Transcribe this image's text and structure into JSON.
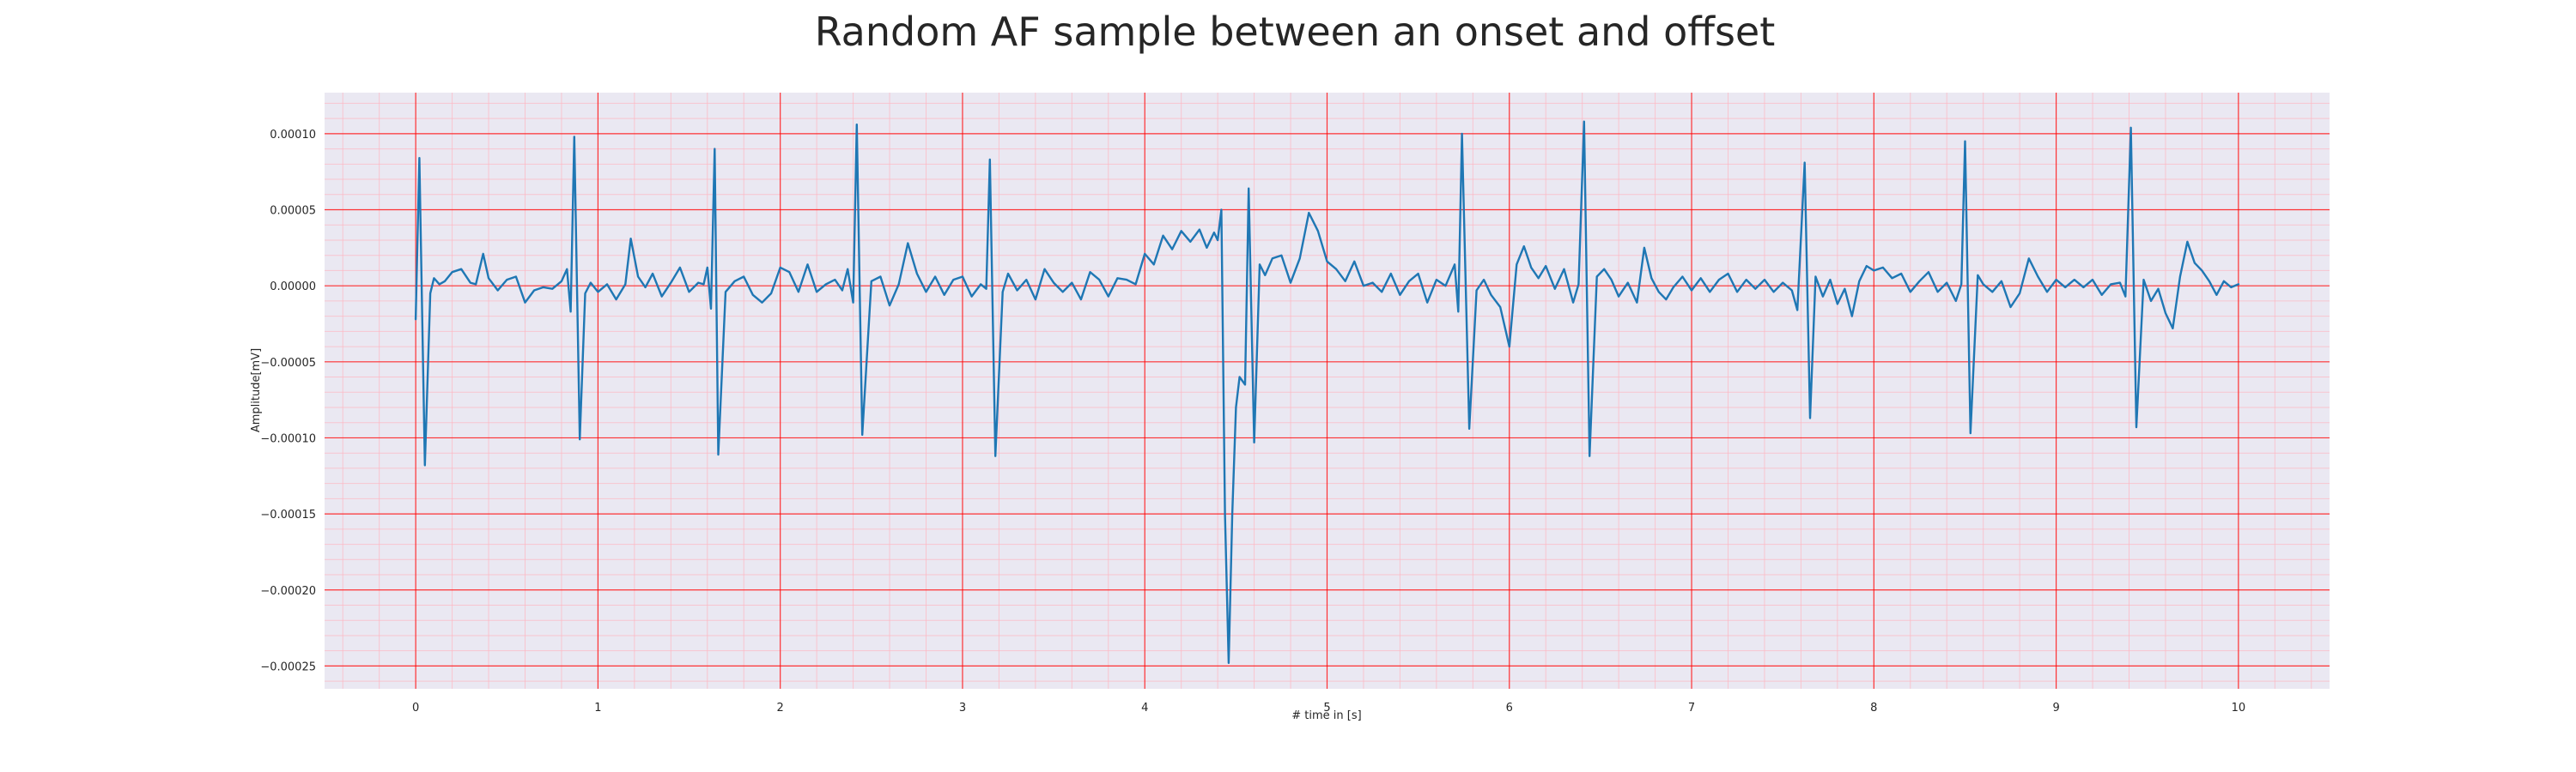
{
  "chart_data": {
    "type": "line",
    "title": "Random AF sample between an onset and offset",
    "xlabel": "# time in [s]",
    "ylabel": "Amplitude[mV]",
    "xlim": [
      -0.5,
      10.5
    ],
    "ylim": [
      -0.000265,
      0.000127
    ],
    "xticks": [
      0,
      1,
      2,
      3,
      4,
      5,
      6,
      7,
      8,
      9,
      10
    ],
    "xtick_labels": [
      "0",
      "1",
      "2",
      "3",
      "4",
      "5",
      "6",
      "7",
      "8",
      "9",
      "10"
    ],
    "yticks": [
      0.0001,
      5e-05,
      0,
      -5e-05,
      -0.0001,
      -0.00015,
      -0.0002,
      -0.00025
    ],
    "ytick_labels": [
      "0.00010",
      "0.00005",
      "0.00000",
      "−0.00005",
      "−0.00010",
      "−0.00015",
      "−0.00020",
      "−0.00025"
    ],
    "grid": true,
    "colors": {
      "line": "#1f77b4",
      "plot_background": "#eae8f2",
      "major_grid": "#ff0000",
      "minor_grid": "#ffb6c1"
    },
    "series": [
      {
        "values": [
          [
            0,
            -2.2e-05
          ],
          [
            0.02,
            8.4e-05
          ],
          [
            0.05,
            -0.000118
          ],
          [
            0.08,
            -5e-06
          ],
          [
            0.1,
            5e-06
          ],
          [
            0.13,
            1e-06
          ],
          [
            0.16,
            3e-06
          ],
          [
            0.2,
            9e-06
          ],
          [
            0.25,
            1.1e-05
          ],
          [
            0.3,
            2e-06
          ],
          [
            0.33,
            1e-06
          ],
          [
            0.37,
            2.1e-05
          ],
          [
            0.4,
            5e-06
          ],
          [
            0.45,
            -3e-06
          ],
          [
            0.5,
            4e-06
          ],
          [
            0.55,
            6e-06
          ],
          [
            0.6,
            -1.1e-05
          ],
          [
            0.65,
            -3e-06
          ],
          [
            0.7,
            -1e-06
          ],
          [
            0.75,
            -2e-06
          ],
          [
            0.8,
            3e-06
          ],
          [
            0.83,
            1.1e-05
          ],
          [
            0.85,
            -1.7e-05
          ],
          [
            0.87,
            9.8e-05
          ],
          [
            0.9,
            -0.000101
          ],
          [
            0.93,
            -5e-06
          ],
          [
            0.96,
            2e-06
          ],
          [
            1.0,
            -4e-06
          ],
          [
            1.05,
            1e-06
          ],
          [
            1.1,
            -9e-06
          ],
          [
            1.15,
            1e-06
          ],
          [
            1.18,
            3.1e-05
          ],
          [
            1.22,
            6e-06
          ],
          [
            1.26,
            -1e-06
          ],
          [
            1.3,
            8e-06
          ],
          [
            1.35,
            -7e-06
          ],
          [
            1.4,
            2e-06
          ],
          [
            1.45,
            1.2e-05
          ],
          [
            1.5,
            -4e-06
          ],
          [
            1.55,
            2e-06
          ],
          [
            1.58,
            1e-06
          ],
          [
            1.6,
            1.2e-05
          ],
          [
            1.62,
            -1.5e-05
          ],
          [
            1.64,
            9e-05
          ],
          [
            1.66,
            -0.000111
          ],
          [
            1.7,
            -4e-06
          ],
          [
            1.75,
            3e-06
          ],
          [
            1.8,
            6e-06
          ],
          [
            1.85,
            -6e-06
          ],
          [
            1.9,
            -1.1e-05
          ],
          [
            1.95,
            -5e-06
          ],
          [
            2.0,
            1.2e-05
          ],
          [
            2.05,
            9e-06
          ],
          [
            2.1,
            -4e-06
          ],
          [
            2.15,
            1.4e-05
          ],
          [
            2.2,
            -4e-06
          ],
          [
            2.25,
            1e-06
          ],
          [
            2.3,
            4e-06
          ],
          [
            2.34,
            -3e-06
          ],
          [
            2.37,
            1.1e-05
          ],
          [
            2.4,
            -1.1e-05
          ],
          [
            2.42,
            0.000106
          ],
          [
            2.45,
            -9.8e-05
          ],
          [
            2.5,
            3e-06
          ],
          [
            2.55,
            6e-06
          ],
          [
            2.6,
            -1.3e-05
          ],
          [
            2.65,
            1e-06
          ],
          [
            2.7,
            2.8e-05
          ],
          [
            2.75,
            8e-06
          ],
          [
            2.8,
            -4e-06
          ],
          [
            2.85,
            6e-06
          ],
          [
            2.9,
            -6e-06
          ],
          [
            2.95,
            4e-06
          ],
          [
            3.0,
            6e-06
          ],
          [
            3.05,
            -7e-06
          ],
          [
            3.1,
            1e-06
          ],
          [
            3.13,
            -2e-06
          ],
          [
            3.15,
            8.3e-05
          ],
          [
            3.18,
            -0.000112
          ],
          [
            3.22,
            -4e-06
          ],
          [
            3.25,
            8e-06
          ],
          [
            3.3,
            -3e-06
          ],
          [
            3.35,
            4e-06
          ],
          [
            3.4,
            -9e-06
          ],
          [
            3.45,
            1.1e-05
          ],
          [
            3.5,
            2e-06
          ],
          [
            3.55,
            -4e-06
          ],
          [
            3.6,
            2e-06
          ],
          [
            3.65,
            -9e-06
          ],
          [
            3.7,
            9e-06
          ],
          [
            3.75,
            4e-06
          ],
          [
            3.8,
            -7e-06
          ],
          [
            3.85,
            5e-06
          ],
          [
            3.9,
            4e-06
          ],
          [
            3.95,
            1e-06
          ],
          [
            4.0,
            2.1e-05
          ],
          [
            4.05,
            1.4e-05
          ],
          [
            4.1,
            3.3e-05
          ],
          [
            4.15,
            2.4e-05
          ],
          [
            4.2,
            3.6e-05
          ],
          [
            4.25,
            2.9e-05
          ],
          [
            4.3,
            3.7e-05
          ],
          [
            4.34,
            2.5e-05
          ],
          [
            4.38,
            3.5e-05
          ],
          [
            4.4,
            3e-05
          ],
          [
            4.42,
            5e-05
          ],
          [
            4.44,
            -0.00015
          ],
          [
            4.46,
            -0.000248
          ],
          [
            4.48,
            -0.00015
          ],
          [
            4.5,
            -8e-05
          ],
          [
            4.52,
            -6e-05
          ],
          [
            4.55,
            -6.5e-05
          ],
          [
            4.57,
            6.4e-05
          ],
          [
            4.6,
            -0.000103
          ],
          [
            4.63,
            1.4e-05
          ],
          [
            4.66,
            7e-06
          ],
          [
            4.7,
            1.8e-05
          ],
          [
            4.75,
            2e-05
          ],
          [
            4.8,
            2e-06
          ],
          [
            4.85,
            1.8e-05
          ],
          [
            4.9,
            4.8e-05
          ],
          [
            4.95,
            3.6e-05
          ],
          [
            5.0,
            1.6e-05
          ],
          [
            5.05,
            1.1e-05
          ],
          [
            5.1,
            3e-06
          ],
          [
            5.15,
            1.6e-05
          ],
          [
            5.2,
            0.0
          ],
          [
            5.25,
            2e-06
          ],
          [
            5.3,
            -4e-06
          ],
          [
            5.35,
            8e-06
          ],
          [
            5.4,
            -6e-06
          ],
          [
            5.45,
            3e-06
          ],
          [
            5.5,
            8e-06
          ],
          [
            5.55,
            -1.1e-05
          ],
          [
            5.6,
            4e-06
          ],
          [
            5.65,
            0.0
          ],
          [
            5.7,
            1.4e-05
          ],
          [
            5.72,
            -1.7e-05
          ],
          [
            5.74,
            0.0001
          ],
          [
            5.78,
            -9.4e-05
          ],
          [
            5.82,
            -3e-06
          ],
          [
            5.86,
            4e-06
          ],
          [
            5.9,
            -6e-06
          ],
          [
            5.95,
            -1.4e-05
          ],
          [
            6.0,
            -4e-05
          ],
          [
            6.04,
            1.4e-05
          ],
          [
            6.08,
            2.6e-05
          ],
          [
            6.12,
            1.2e-05
          ],
          [
            6.16,
            5e-06
          ],
          [
            6.2,
            1.3e-05
          ],
          [
            6.25,
            -2e-06
          ],
          [
            6.3,
            1.1e-05
          ],
          [
            6.35,
            -1.1e-05
          ],
          [
            6.38,
            1e-06
          ],
          [
            6.41,
            0.000108
          ],
          [
            6.44,
            -0.000112
          ],
          [
            6.48,
            6e-06
          ],
          [
            6.52,
            1.1e-05
          ],
          [
            6.56,
            4e-06
          ],
          [
            6.6,
            -7e-06
          ],
          [
            6.65,
            2e-06
          ],
          [
            6.7,
            -1.1e-05
          ],
          [
            6.74,
            2.5e-05
          ],
          [
            6.78,
            5e-06
          ],
          [
            6.82,
            -4e-06
          ],
          [
            6.86,
            -9e-06
          ],
          [
            6.9,
            -1e-06
          ],
          [
            6.95,
            6e-06
          ],
          [
            7.0,
            -3e-06
          ],
          [
            7.05,
            5e-06
          ],
          [
            7.1,
            -4e-06
          ],
          [
            7.15,
            4e-06
          ],
          [
            7.2,
            8e-06
          ],
          [
            7.25,
            -4e-06
          ],
          [
            7.3,
            4e-06
          ],
          [
            7.35,
            -2e-06
          ],
          [
            7.4,
            4e-06
          ],
          [
            7.45,
            -4e-06
          ],
          [
            7.5,
            2e-06
          ],
          [
            7.55,
            -3e-06
          ],
          [
            7.58,
            -1.6e-05
          ],
          [
            7.62,
            8.1e-05
          ],
          [
            7.65,
            -8.7e-05
          ],
          [
            7.68,
            6e-06
          ],
          [
            7.72,
            -7e-06
          ],
          [
            7.76,
            4e-06
          ],
          [
            7.8,
            -1.2e-05
          ],
          [
            7.84,
            -2e-06
          ],
          [
            7.88,
            -2e-05
          ],
          [
            7.92,
            3e-06
          ],
          [
            7.96,
            1.3e-05
          ],
          [
            8.0,
            1e-05
          ],
          [
            8.05,
            1.2e-05
          ],
          [
            8.1,
            5e-06
          ],
          [
            8.15,
            8e-06
          ],
          [
            8.2,
            -4e-06
          ],
          [
            8.25,
            3e-06
          ],
          [
            8.3,
            9e-06
          ],
          [
            8.35,
            -4e-06
          ],
          [
            8.4,
            2e-06
          ],
          [
            8.45,
            -1e-05
          ],
          [
            8.48,
            1e-06
          ],
          [
            8.5,
            9.5e-05
          ],
          [
            8.53,
            -9.7e-05
          ],
          [
            8.57,
            7e-06
          ],
          [
            8.6,
            1e-06
          ],
          [
            8.65,
            -4e-06
          ],
          [
            8.7,
            3e-06
          ],
          [
            8.75,
            -1.4e-05
          ],
          [
            8.8,
            -5e-06
          ],
          [
            8.85,
            1.8e-05
          ],
          [
            8.9,
            6e-06
          ],
          [
            8.95,
            -4e-06
          ],
          [
            9.0,
            4e-06
          ],
          [
            9.05,
            -1e-06
          ],
          [
            9.1,
            4e-06
          ],
          [
            9.15,
            -1e-06
          ],
          [
            9.2,
            4e-06
          ],
          [
            9.25,
            -6e-06
          ],
          [
            9.3,
            1e-06
          ],
          [
            9.35,
            2e-06
          ],
          [
            9.38,
            -7e-06
          ],
          [
            9.41,
            0.000104
          ],
          [
            9.44,
            -9.3e-05
          ],
          [
            9.48,
            4e-06
          ],
          [
            9.52,
            -1e-05
          ],
          [
            9.56,
            -2e-06
          ],
          [
            9.6,
            -1.8e-05
          ],
          [
            9.64,
            -2.8e-05
          ],
          [
            9.68,
            6e-06
          ],
          [
            9.72,
            2.9e-05
          ],
          [
            9.76,
            1.5e-05
          ],
          [
            9.8,
            1e-05
          ],
          [
            9.84,
            3e-06
          ],
          [
            9.88,
            -6e-06
          ],
          [
            9.92,
            3e-06
          ],
          [
            9.96,
            -1e-06
          ],
          [
            10.0,
            1e-06
          ]
        ]
      }
    ]
  }
}
